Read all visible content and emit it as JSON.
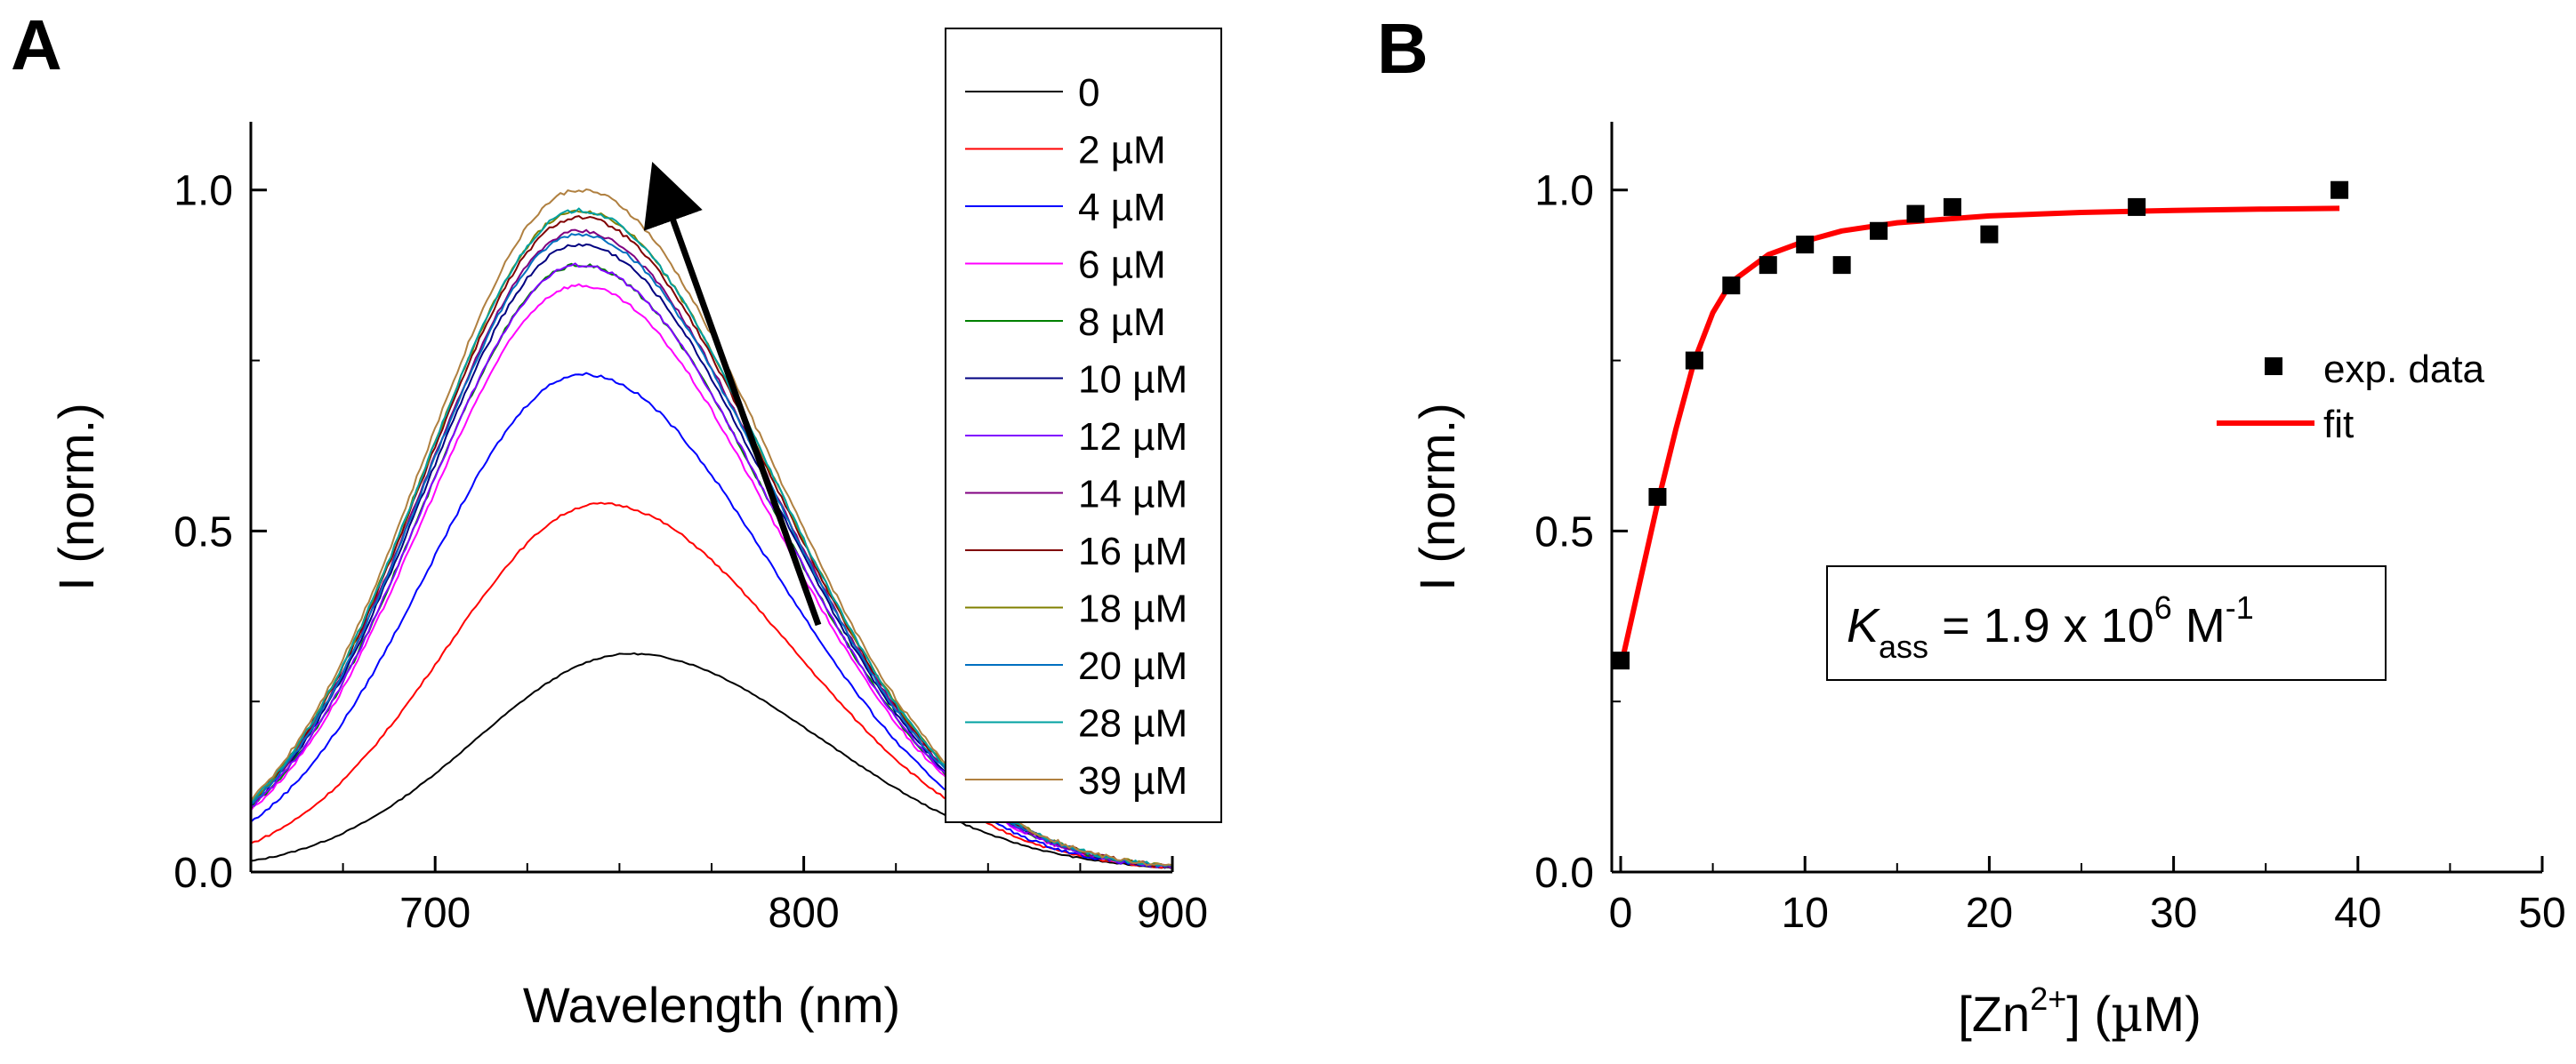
{
  "chart_data": [
    {
      "panel": "A",
      "type": "line",
      "title": "",
      "xlabel": "Wavelength (nm)",
      "ylabel": "I (norm.)",
      "xlim": [
        650,
        900
      ],
      "ylim": [
        0,
        1.1
      ],
      "xticks": [
        700,
        800,
        900
      ],
      "xtick_labels": [
        "700",
        "800",
        "900"
      ],
      "yticks": [
        0.0,
        0.5,
        1.0
      ],
      "ytick_labels": [
        "0.0",
        "0.5",
        "1.0"
      ],
      "legend_location": "top-right",
      "annotation": "arrow pointing up-left indicating increasing intensity with Zn2+ concentration",
      "series": [
        {
          "name": "0",
          "color": "#000000",
          "peak_x": 753,
          "peak_y": 0.32
        },
        {
          "name": "2 µM",
          "color": "#ff0000",
          "peak_x": 745,
          "peak_y": 0.54
        },
        {
          "name": "4 µM",
          "color": "#0000ff",
          "peak_x": 740,
          "peak_y": 0.73
        },
        {
          "name": "6 µM",
          "color": "#ff00ff",
          "peak_x": 739,
          "peak_y": 0.86
        },
        {
          "name": "8 µM",
          "color": "#008000",
          "peak_x": 739,
          "peak_y": 0.89
        },
        {
          "name": "10 µM",
          "color": "#000080",
          "peak_x": 739,
          "peak_y": 0.92
        },
        {
          "name": "12 µM",
          "color": "#8000ff",
          "peak_x": 739,
          "peak_y": 0.89
        },
        {
          "name": "14 µM",
          "color": "#800080",
          "peak_x": 739,
          "peak_y": 0.94
        },
        {
          "name": "16 µM",
          "color": "#800000",
          "peak_x": 739,
          "peak_y": 0.96
        },
        {
          "name": "18 µM",
          "color": "#808000",
          "peak_x": 739,
          "peak_y": 0.97
        },
        {
          "name": "20 µM",
          "color": "#0070c0",
          "peak_x": 739,
          "peak_y": 0.935
        },
        {
          "name": "28 µM",
          "color": "#00a0a0",
          "peak_x": 739,
          "peak_y": 0.97
        },
        {
          "name": "39 µM",
          "color": "#b08040",
          "peak_x": 739,
          "peak_y": 1.0
        }
      ]
    },
    {
      "panel": "B",
      "type": "scatter",
      "title": "",
      "xlabel": "[Zn2+] (µM)",
      "xlabel_parts": {
        "pre": "[Zn",
        "sup": "2+",
        "post": "] (",
        "mu": "µ",
        "unit": "M)"
      },
      "ylabel": "I (norm.)",
      "xlim": [
        0,
        50
      ],
      "ylim": [
        0,
        1.1
      ],
      "xticks": [
        0,
        10,
        20,
        30,
        40,
        50
      ],
      "xtick_labels": [
        "0",
        "10",
        "20",
        "30",
        "40",
        "50"
      ],
      "yticks": [
        0.0,
        0.5,
        1.0
      ],
      "ytick_labels": [
        "0.0",
        "0.5",
        "1.0"
      ],
      "legend_location": "right",
      "series": [
        {
          "name": "exp. data",
          "type": "scatter",
          "color": "#000000",
          "x": [
            0,
            2,
            4,
            6,
            8,
            10,
            12,
            14,
            16,
            18,
            20,
            28,
            39
          ],
          "y": [
            0.31,
            0.55,
            0.75,
            0.86,
            0.89,
            0.92,
            0.89,
            0.94,
            0.965,
            0.975,
            0.935,
            0.975,
            1.0
          ]
        },
        {
          "name": "fit",
          "type": "line",
          "color": "#ff0000",
          "x": [
            0,
            1,
            2,
            3,
            4,
            5,
            6,
            8,
            10,
            12,
            15,
            20,
            25,
            30,
            35,
            39
          ],
          "y": [
            0.3,
            0.42,
            0.54,
            0.65,
            0.75,
            0.82,
            0.865,
            0.905,
            0.925,
            0.94,
            0.952,
            0.962,
            0.967,
            0.97,
            0.972,
            0.973
          ]
        }
      ],
      "annotation": {
        "K": "K",
        "sub": "ass",
        "eq": " = 1.9 x 10",
        "exp": "6",
        "unit": " M",
        "unit_exp": "-1"
      }
    }
  ]
}
